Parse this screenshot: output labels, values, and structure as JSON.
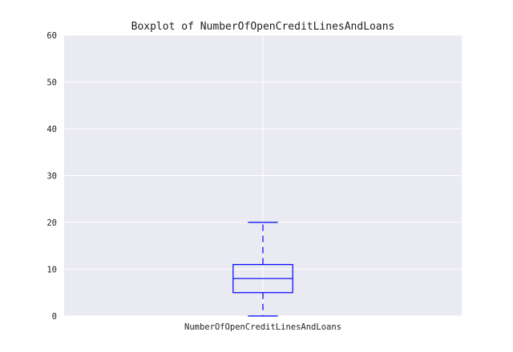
{
  "chart_data": {
    "type": "boxplot",
    "title": "Boxplot of NumberOfOpenCreditLinesAndLoans",
    "xlabel": "",
    "ylabel": "",
    "categories": [
      "NumberOfOpenCreditLinesAndLoans"
    ],
    "ylim": [
      0,
      60
    ],
    "yticks": [
      0,
      10,
      20,
      30,
      40,
      50,
      60
    ],
    "grid": true,
    "boxes": [
      {
        "category": "NumberOfOpenCreditLinesAndLoans",
        "whisker_low": 0,
        "q1": 5,
        "median": 8,
        "q3": 11,
        "whisker_high": 20
      }
    ]
  },
  "colors": {
    "plot_background": "#eaeaf2",
    "grid": "#ffffff",
    "box": "#0000ff",
    "text": "#222222"
  }
}
